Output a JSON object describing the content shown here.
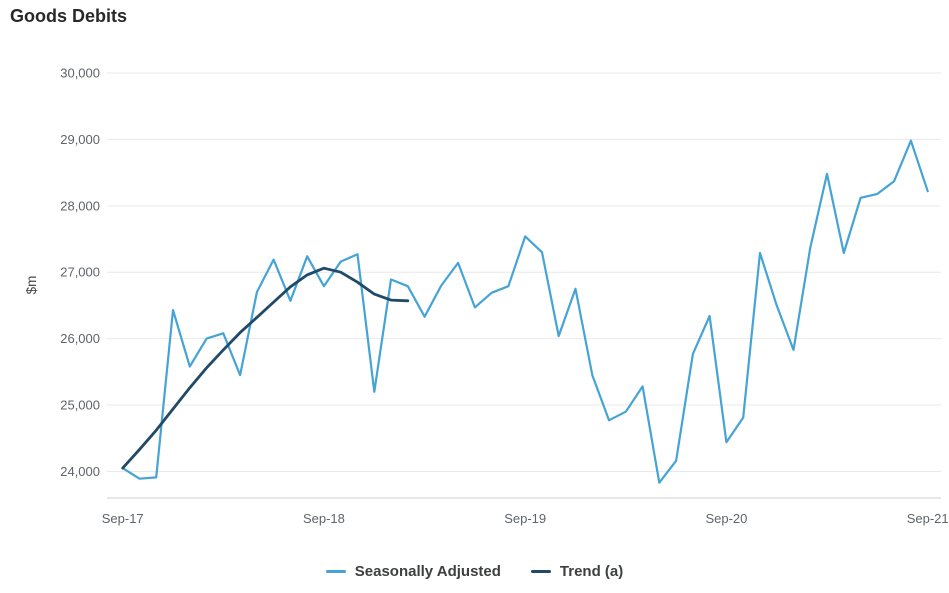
{
  "title": "Goods Debits",
  "colors": {
    "seasonally_adjusted": "#45a3d5",
    "trend": "#214a68",
    "gridline": "#e9e9e9",
    "axis_line": "#c9ced4",
    "tick_text": "#5e646a",
    "title_text": "#27292b",
    "legend_text": "#3d3f40",
    "background": "#ffffff"
  },
  "chart_data": {
    "type": "line",
    "title": "Goods Debits",
    "ylabel": "$m",
    "xlabel": "",
    "ylim": [
      23600,
      30000
    ],
    "grid": true,
    "legend_position": "bottom",
    "y_ticks": [
      {
        "value": 24000,
        "label": "24,000"
      },
      {
        "value": 25000,
        "label": "25,000"
      },
      {
        "value": 26000,
        "label": "26,000"
      },
      {
        "value": 27000,
        "label": "27,000"
      },
      {
        "value": 28000,
        "label": "28,000"
      },
      {
        "value": 29000,
        "label": "29,000"
      },
      {
        "value": 30000,
        "label": "30,000"
      }
    ],
    "x_ticks": [
      {
        "index": 0,
        "label": "Sep-17"
      },
      {
        "index": 12,
        "label": "Sep-18"
      },
      {
        "index": 24,
        "label": "Sep-19"
      },
      {
        "index": 36,
        "label": "Sep-20"
      },
      {
        "index": 48,
        "label": "Sep-21"
      }
    ],
    "categories": [
      "Sep-17",
      "Oct-17",
      "Nov-17",
      "Dec-17",
      "Jan-18",
      "Feb-18",
      "Mar-18",
      "Apr-18",
      "May-18",
      "Jun-18",
      "Jul-18",
      "Aug-18",
      "Sep-18",
      "Oct-18",
      "Nov-18",
      "Dec-18",
      "Jan-19",
      "Feb-19",
      "Mar-19",
      "Apr-19",
      "May-19",
      "Jun-19",
      "Jul-19",
      "Aug-19",
      "Sep-19",
      "Oct-19",
      "Nov-19",
      "Dec-19",
      "Jan-20",
      "Feb-20",
      "Mar-20",
      "Apr-20",
      "May-20",
      "Jun-20",
      "Jul-20",
      "Aug-20",
      "Sep-20",
      "Oct-20",
      "Nov-20",
      "Dec-20",
      "Jan-21",
      "Feb-21",
      "Mar-21",
      "Apr-21",
      "May-21",
      "Jun-21",
      "Jul-21",
      "Aug-21",
      "Sep-21"
    ],
    "series": [
      {
        "name": "Seasonally Adjusted",
        "color": "#45a3d5",
        "stroke_width": 2.2,
        "values": [
          24050,
          23890,
          23910,
          26430,
          25580,
          26000,
          26080,
          25450,
          26700,
          27190,
          26570,
          27240,
          26790,
          27160,
          27270,
          25200,
          26890,
          26790,
          26330,
          26800,
          27140,
          26470,
          26690,
          26790,
          27540,
          27300,
          26040,
          26750,
          25450,
          24770,
          24900,
          25280,
          23830,
          24160,
          25770,
          26340,
          24440,
          24810,
          27290,
          26500,
          25830,
          27370,
          28480,
          27290,
          28120,
          28180,
          28370,
          28980,
          28220
        ]
      },
      {
        "name": "Trend (a)",
        "color": "#214a68",
        "stroke_width": 2.8,
        "values": [
          24050,
          24330,
          24620,
          24940,
          25260,
          25560,
          25830,
          26090,
          26320,
          26550,
          26780,
          26960,
          27060,
          27000,
          26850,
          26670,
          26580,
          26570
        ]
      }
    ]
  },
  "legend": {
    "items": [
      {
        "label": "Seasonally Adjusted"
      },
      {
        "label": "Trend (a)"
      }
    ]
  }
}
